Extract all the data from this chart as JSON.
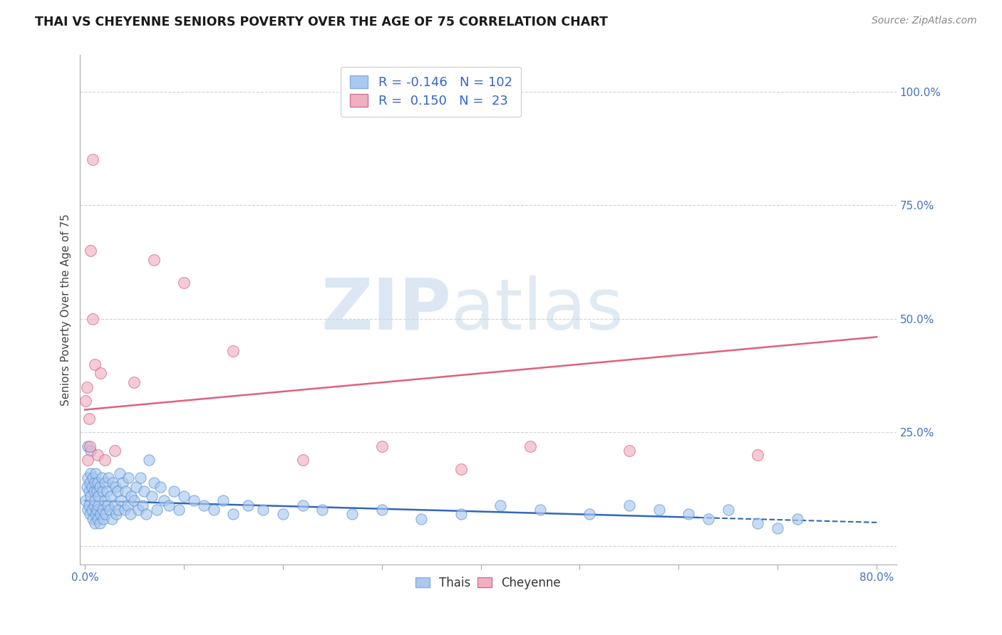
{
  "title": "THAI VS CHEYENNE SENIORS POVERTY OVER THE AGE OF 75 CORRELATION CHART",
  "source": "Source: ZipAtlas.com",
  "ylabel": "Seniors Poverty Over the Age of 75",
  "xlim": [
    -0.005,
    0.82
  ],
  "ylim": [
    -0.04,
    1.08
  ],
  "xticks": [
    0.0,
    0.1,
    0.2,
    0.3,
    0.4,
    0.5,
    0.6,
    0.7,
    0.8
  ],
  "xticklabels": [
    "0.0%",
    "",
    "",
    "",
    "",
    "",
    "",
    "",
    "80.0%"
  ],
  "yticks_right": [
    0.0,
    0.25,
    0.5,
    0.75,
    1.0
  ],
  "yticklabels_right": [
    "",
    "25.0%",
    "50.0%",
    "75.0%",
    "100.0%"
  ],
  "grid_color": "#c8c8c8",
  "bg_color": "#ffffff",
  "thai_color": "#aac8f0",
  "thai_edge_color": "#5590d0",
  "cheyenne_color": "#f0b0c0",
  "cheyenne_edge_color": "#d06080",
  "thai_R": -0.146,
  "thai_N": 102,
  "cheyenne_R": 0.15,
  "cheyenne_N": 23,
  "thai_line_color": "#3366bb",
  "cheyenne_line_color": "#e06080",
  "watermark_zip_color": "#c8d8e8",
  "watermark_atlas_color": "#b8cce0",
  "legend_text_color": "#3366cc",
  "thai_line_intercept": 0.1,
  "thai_line_slope": -0.06,
  "thai_line_x_solid_end": 0.62,
  "thai_line_x_dash_end": 0.8,
  "cheyenne_line_intercept": 0.3,
  "cheyenne_line_slope": 0.2,
  "cheyenne_line_x_end": 0.8,
  "thai_scatter_x": [
    0.001,
    0.002,
    0.003,
    0.003,
    0.004,
    0.004,
    0.005,
    0.005,
    0.006,
    0.006,
    0.007,
    0.007,
    0.008,
    0.008,
    0.009,
    0.009,
    0.01,
    0.01,
    0.01,
    0.011,
    0.011,
    0.012,
    0.012,
    0.013,
    0.013,
    0.014,
    0.014,
    0.015,
    0.015,
    0.016,
    0.017,
    0.018,
    0.018,
    0.019,
    0.02,
    0.02,
    0.021,
    0.022,
    0.023,
    0.024,
    0.025,
    0.026,
    0.027,
    0.028,
    0.03,
    0.031,
    0.032,
    0.033,
    0.034,
    0.035,
    0.037,
    0.038,
    0.04,
    0.041,
    0.043,
    0.044,
    0.046,
    0.047,
    0.05,
    0.052,
    0.054,
    0.056,
    0.058,
    0.06,
    0.062,
    0.065,
    0.068,
    0.07,
    0.073,
    0.076,
    0.08,
    0.085,
    0.09,
    0.095,
    0.1,
    0.11,
    0.12,
    0.13,
    0.14,
    0.15,
    0.165,
    0.18,
    0.2,
    0.22,
    0.24,
    0.27,
    0.3,
    0.34,
    0.38,
    0.42,
    0.46,
    0.51,
    0.55,
    0.58,
    0.61,
    0.63,
    0.65,
    0.68,
    0.7,
    0.72,
    0.003,
    0.006
  ],
  "thai_scatter_y": [
    0.1,
    0.13,
    0.08,
    0.15,
    0.09,
    0.12,
    0.07,
    0.14,
    0.11,
    0.16,
    0.08,
    0.13,
    0.06,
    0.15,
    0.09,
    0.12,
    0.05,
    0.1,
    0.14,
    0.07,
    0.16,
    0.08,
    0.12,
    0.06,
    0.14,
    0.09,
    0.11,
    0.05,
    0.13,
    0.07,
    0.15,
    0.08,
    0.12,
    0.06,
    0.1,
    0.14,
    0.07,
    0.12,
    0.09,
    0.15,
    0.08,
    0.11,
    0.06,
    0.14,
    0.09,
    0.13,
    0.07,
    0.12,
    0.08,
    0.16,
    0.1,
    0.14,
    0.08,
    0.12,
    0.09,
    0.15,
    0.07,
    0.11,
    0.1,
    0.13,
    0.08,
    0.15,
    0.09,
    0.12,
    0.07,
    0.19,
    0.11,
    0.14,
    0.08,
    0.13,
    0.1,
    0.09,
    0.12,
    0.08,
    0.11,
    0.1,
    0.09,
    0.08,
    0.1,
    0.07,
    0.09,
    0.08,
    0.07,
    0.09,
    0.08,
    0.07,
    0.08,
    0.06,
    0.07,
    0.09,
    0.08,
    0.07,
    0.09,
    0.08,
    0.07,
    0.06,
    0.08,
    0.05,
    0.04,
    0.06,
    0.22,
    0.21
  ],
  "cheyenne_scatter_x": [
    0.001,
    0.002,
    0.004,
    0.006,
    0.008,
    0.01,
    0.013,
    0.016,
    0.02,
    0.03,
    0.05,
    0.07,
    0.1,
    0.15,
    0.22,
    0.3,
    0.38,
    0.55,
    0.68,
    0.003,
    0.005,
    0.008,
    0.45
  ],
  "cheyenne_scatter_y": [
    0.32,
    0.35,
    0.28,
    0.65,
    0.5,
    0.4,
    0.2,
    0.38,
    0.19,
    0.21,
    0.36,
    0.63,
    0.58,
    0.43,
    0.19,
    0.22,
    0.17,
    0.21,
    0.2,
    0.19,
    0.22,
    0.85,
    0.22
  ]
}
